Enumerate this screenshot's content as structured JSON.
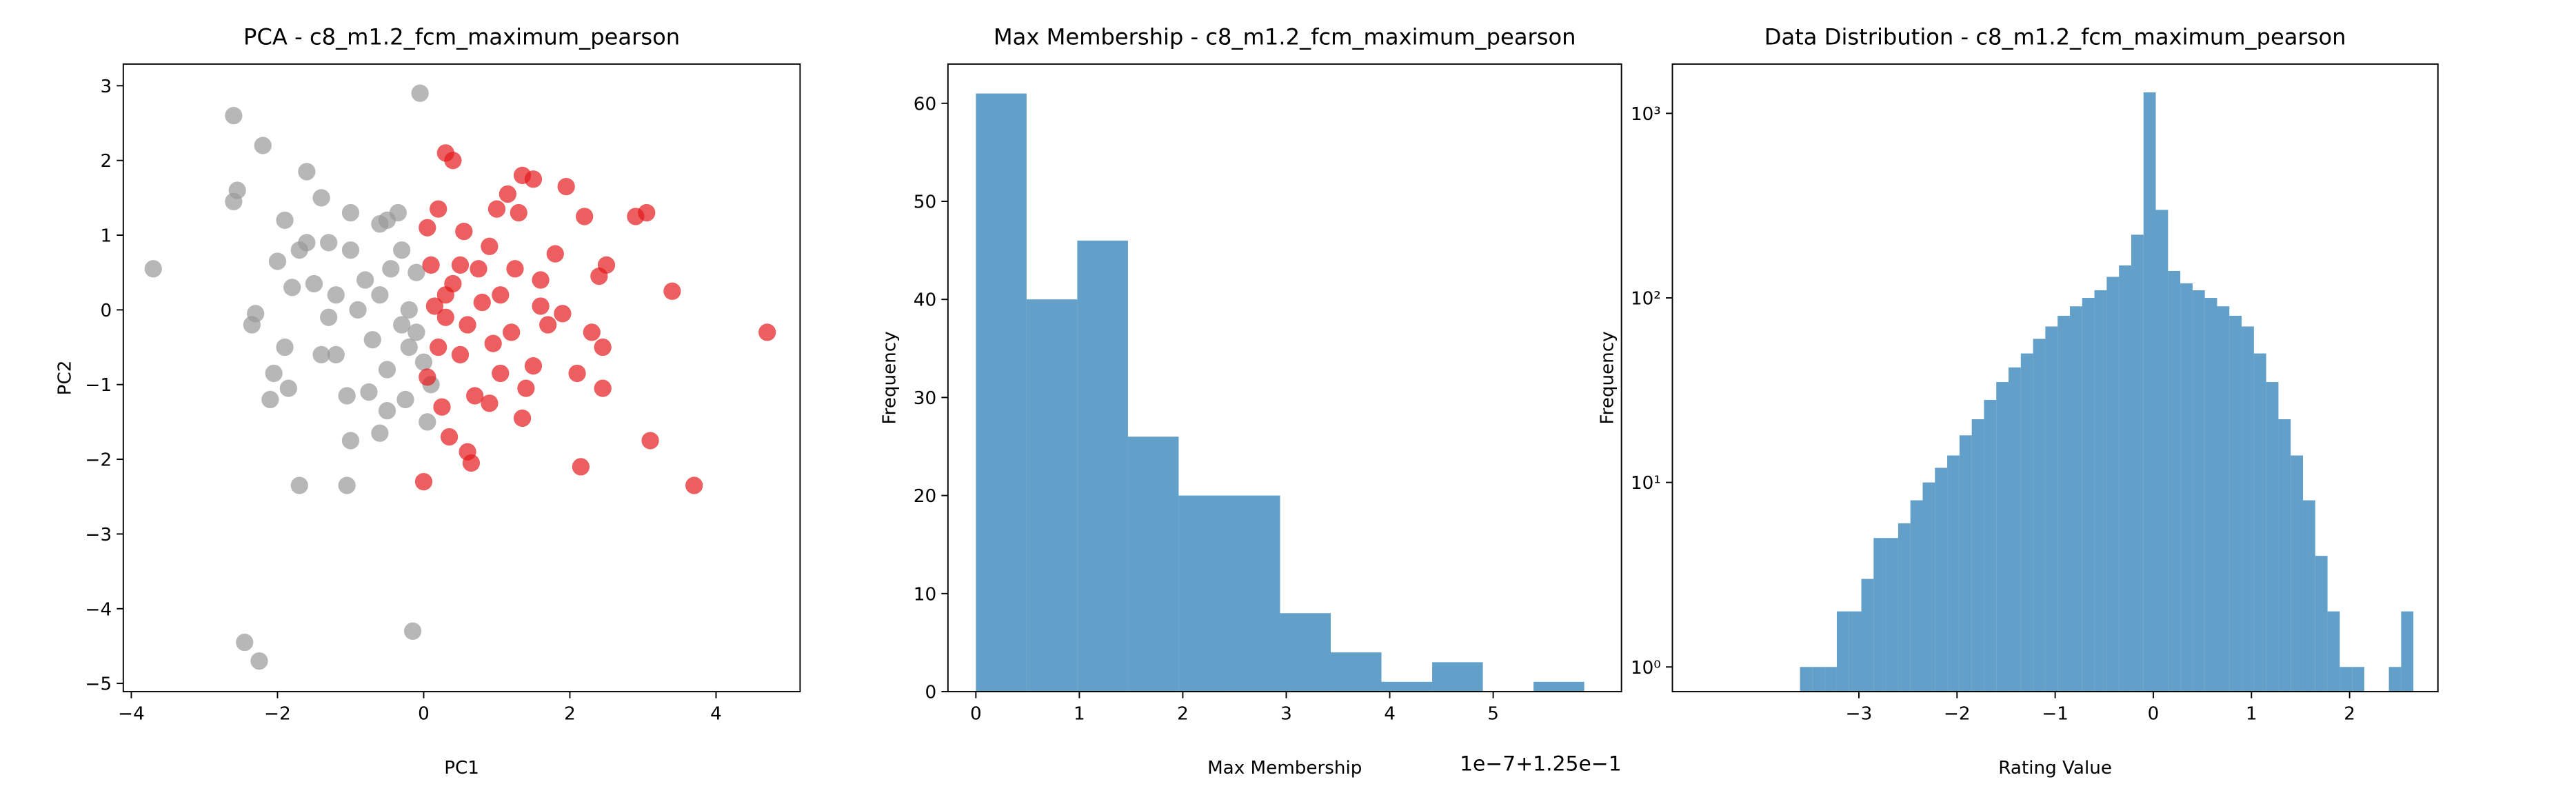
{
  "chart_data": [
    {
      "type": "scatter",
      "title": "PCA - c8_m1.2_fcm_maximum_pearson",
      "x_label": "PC1",
      "y_label": "PC2",
      "xlim": [
        -4.11,
        5.15
      ],
      "ylim": [
        -5.11,
        3.29
      ],
      "xticks": [
        {
          "value": -4,
          "label": "−4"
        },
        {
          "value": -2,
          "label": "−2"
        },
        0,
        2,
        4
      ],
      "yticks": [
        {
          "value": -5,
          "label": "−5"
        },
        {
          "value": -4,
          "label": "−4"
        },
        {
          "value": -3,
          "label": "−3"
        },
        {
          "value": -2,
          "label": "−2"
        },
        {
          "value": -1,
          "label": "−1"
        },
        0,
        1,
        2,
        3
      ],
      "series": [
        {
          "color": "#999999",
          "x": [
            -3.7,
            -2.6,
            -2.55,
            -2.6,
            -2.2,
            -2.45,
            -2.25,
            -0.15,
            -0.05,
            -1.7,
            -1.05,
            -2.1,
            -2.05,
            -1.85,
            -2.3,
            -2.35,
            -1.9,
            -2.0,
            -1.8,
            -1.9,
            -1.6,
            -1.4,
            -1.6,
            -1.5,
            -1.3,
            -1.2,
            -1.05,
            -1.0,
            -0.75,
            -0.7,
            -0.6,
            -1.0,
            -1.0,
            -0.6,
            -0.5,
            -0.35,
            -0.45,
            -0.3,
            -0.5,
            -0.5,
            -0.6,
            -0.2,
            -0.1,
            -0.2,
            0.05,
            0.1,
            -0.1,
            -1.2,
            -1.4,
            -1.7,
            -1.3,
            -0.9,
            -0.8,
            -0.3,
            0.0,
            -0.25
          ],
          "y": [
            0.55,
            2.6,
            1.6,
            1.45,
            2.2,
            -4.45,
            -4.7,
            -4.3,
            2.9,
            -2.35,
            -2.35,
            -1.2,
            -0.85,
            -1.05,
            -0.05,
            -0.2,
            -0.5,
            0.65,
            0.3,
            1.2,
            1.85,
            1.5,
            0.9,
            0.35,
            -0.1,
            -0.6,
            -1.15,
            -1.75,
            -1.1,
            -0.4,
            0.2,
            0.8,
            1.3,
            1.15,
            1.2,
            1.3,
            0.55,
            -0.2,
            -0.8,
            -1.35,
            -1.65,
            -0.5,
            0.5,
            0.0,
            -1.5,
            -1.0,
            -0.3,
            0.2,
            -0.6,
            0.8,
            0.9,
            0.0,
            0.4,
            0.8,
            -0.7,
            -1.2
          ]
        },
        {
          "color": "#e41a1c",
          "x": [
            4.7,
            3.7,
            3.4,
            3.1,
            3.05,
            2.9,
            2.5,
            2.4,
            2.45,
            2.45,
            2.3,
            2.15,
            2.1,
            2.2,
            1.95,
            1.6,
            1.7,
            1.5,
            1.35,
            1.4,
            1.3,
            1.5,
            1.35,
            1.15,
            1.0,
            0.9,
            0.75,
            0.5,
            0.3,
            0.4,
            0.2,
            0.05,
            0.1,
            0.3,
            0.2,
            0.05,
            0.0,
            0.35,
            0.6,
            0.65,
            0.7,
            0.9,
            1.05,
            1.2,
            1.05,
            0.8,
            0.6,
            0.5,
            0.3,
            0.15,
            1.6,
            1.9,
            1.25,
            0.55,
            0.95,
            1.8,
            0.25,
            0.4
          ],
          "y": [
            -0.3,
            -2.35,
            0.25,
            -1.75,
            1.3,
            1.25,
            0.6,
            0.45,
            -0.5,
            -1.05,
            -0.3,
            -2.1,
            -0.85,
            1.25,
            1.65,
            0.4,
            -0.2,
            -0.75,
            -1.45,
            -1.05,
            1.3,
            1.75,
            1.8,
            1.55,
            1.35,
            0.85,
            0.55,
            0.6,
            2.1,
            2.0,
            1.35,
            1.1,
            0.6,
            0.2,
            -0.5,
            -0.9,
            -2.3,
            -1.7,
            -1.9,
            -2.05,
            -1.15,
            -1.25,
            -0.85,
            -0.3,
            0.2,
            0.1,
            -0.2,
            -0.6,
            -0.1,
            0.05,
            0.05,
            -0.05,
            0.55,
            1.05,
            -0.45,
            0.75,
            -1.3,
            0.35
          ]
        }
      ]
    },
    {
      "type": "histogram",
      "title": "Max Membership - c8_m1.2_fcm_maximum_pearson",
      "x_label": "Max Membership",
      "y_label": "Frequency",
      "offset_label": "1e−7+1.25e−1",
      "color": "#1f77b4",
      "xlim": [
        -0.27,
        6.24
      ],
      "ylim": [
        0,
        64
      ],
      "xticks": [
        0,
        1,
        2,
        3,
        4,
        5
      ],
      "yticks": [
        0,
        10,
        20,
        30,
        40,
        50,
        60
      ],
      "bins": [
        0,
        0.49,
        0.98,
        1.47,
        1.96,
        2.45,
        2.94,
        3.43,
        3.92,
        4.41,
        4.9,
        5.39,
        5.88
      ],
      "counts": [
        61,
        40,
        46,
        26,
        20,
        20,
        8,
        4,
        1,
        3,
        0,
        1
      ]
    },
    {
      "type": "histogram",
      "title": "Data Distribution - c8_m1.2_fcm_maximum_pearson",
      "x_label": "Rating Value",
      "y_label": "Frequency",
      "log_y": true,
      "color": "#1f77b4",
      "xlim": [
        -4.9,
        2.9
      ],
      "ylim": [
        0.735,
        1850
      ],
      "xticks": [
        {
          "value": -3,
          "label": "−3"
        },
        {
          "value": -2,
          "label": "−2"
        },
        {
          "value": -1,
          "label": "−1"
        },
        0,
        1,
        2
      ],
      "yticks": [
        {
          "value": 1,
          "label": "10⁰"
        },
        {
          "value": 10,
          "label": "10¹"
        },
        {
          "value": 100,
          "label": "10²"
        },
        {
          "value": 1000,
          "label": "10³"
        }
      ],
      "bins": [
        -3.6,
        -3.475,
        -3.35,
        -3.225,
        -3.1,
        -2.975,
        -2.85,
        -2.725,
        -2.6,
        -2.475,
        -2.35,
        -2.225,
        -2.1,
        -1.975,
        -1.85,
        -1.725,
        -1.6,
        -1.475,
        -1.35,
        -1.225,
        -1.1,
        -0.975,
        -0.85,
        -0.725,
        -0.6,
        -0.475,
        -0.35,
        -0.225,
        -0.1,
        0.025,
        0.15,
        0.275,
        0.4,
        0.525,
        0.65,
        0.775,
        0.9,
        1.025,
        1.15,
        1.275,
        1.4,
        1.525,
        1.65,
        1.775,
        1.9,
        2.025,
        2.15,
        2.275,
        2.4,
        2.525,
        2.65
      ],
      "counts": [
        1,
        1,
        1,
        2,
        2,
        3,
        5,
        5,
        6,
        8,
        10,
        12,
        14,
        18,
        22,
        28,
        35,
        42,
        50,
        60,
        70,
        80,
        90,
        100,
        110,
        130,
        150,
        220,
        1300,
        300,
        140,
        120,
        110,
        100,
        90,
        80,
        70,
        50,
        35,
        22,
        14,
        8,
        4,
        2,
        1,
        1,
        0,
        0,
        1,
        2
      ]
    }
  ]
}
